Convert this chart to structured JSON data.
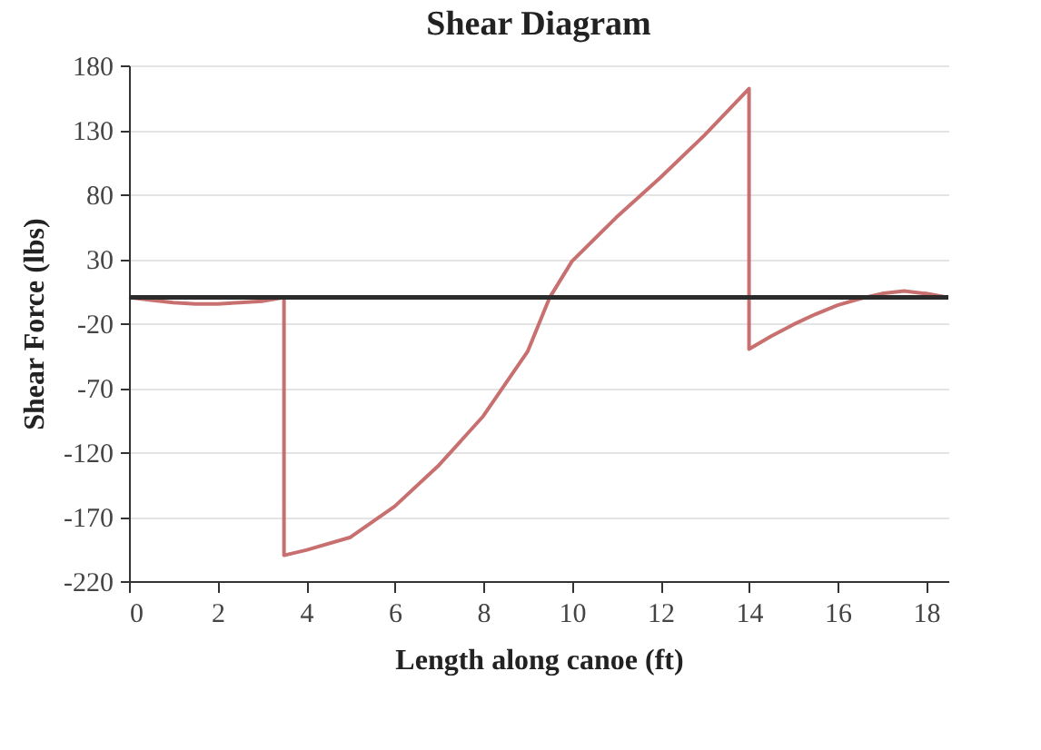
{
  "chart_data": {
    "type": "line",
    "title": "Shear Diagram",
    "xlabel": "Length along canoe (ft)",
    "ylabel": "Shear Force (lbs)",
    "xlim": [
      0,
      18.5
    ],
    "xticks": [
      0,
      2,
      4,
      6,
      8,
      10,
      12,
      14,
      16,
      18
    ],
    "ylim": [
      -220,
      180
    ],
    "yticks": [
      -220,
      -170,
      -120,
      -70,
      -20,
      30,
      80,
      130,
      180
    ],
    "grid": "y",
    "ref_lines": [
      {
        "axis": "y",
        "value": 0,
        "color": "#2b2b2b"
      }
    ],
    "series": [
      {
        "color": "#c8706f",
        "x": [
          0,
          0.5,
          1,
          1.5,
          2,
          2.5,
          3,
          3.5,
          3.5,
          4,
          5,
          6,
          7,
          8,
          9,
          9.5,
          10,
          11,
          12,
          13,
          14,
          14,
          14.5,
          15,
          15.5,
          16,
          16.5,
          17,
          17.5,
          18,
          18.5
        ],
        "values": [
          0,
          -2,
          -4,
          -5,
          -5,
          -4,
          -3,
          0,
          -200,
          -196,
          -186,
          -162,
          -130,
          -92,
          -42,
          0,
          28,
          62,
          93,
          126,
          162,
          -40,
          -30,
          -21,
          -13,
          -6,
          -1,
          3,
          5,
          3,
          0
        ]
      }
    ]
  }
}
